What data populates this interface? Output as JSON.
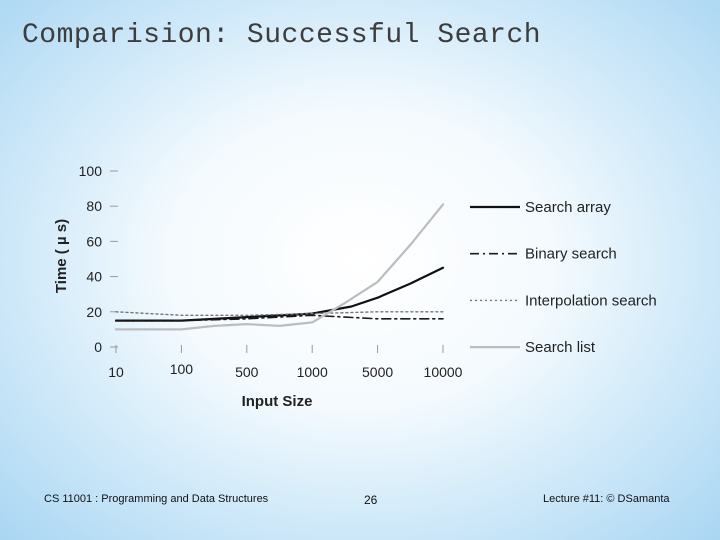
{
  "slide": {
    "title": "Comparision: Successful Search"
  },
  "footer": {
    "course": "CS 11001 : Programming and Data Structures",
    "page_number": "26",
    "lecture": "Lecture #11: © DSamanta"
  },
  "colors": {
    "search_array": "#111111",
    "binary_search": "#1a1a1a",
    "interpolation_search": "#777777",
    "search_list": "#bdbdbd",
    "axis": "#999999",
    "text": "#222222"
  },
  "chart_data": {
    "type": "line",
    "xlabel": "Input Size",
    "ylabel": "Time ( µ s)",
    "categories": [
      "10",
      "100",
      "500",
      "1000",
      "5000",
      "10000"
    ],
    "yticks": [
      "0",
      "20",
      "40",
      "60",
      "80",
      "100"
    ],
    "ylim": [
      0,
      100
    ],
    "grid": false,
    "legend_position": "right",
    "series": [
      {
        "name": "Search array",
        "style": "solid",
        "x": [
          0,
          1,
          2,
          3,
          3.6,
          4,
          4.5,
          5
        ],
        "y": [
          15,
          15,
          17,
          19,
          23,
          28,
          36,
          45
        ]
      },
      {
        "name": "Binary search",
        "style": "dash-dot",
        "x": [
          0,
          1,
          2,
          3,
          3.5,
          4,
          5
        ],
        "y": [
          15,
          15,
          16,
          18,
          17,
          16,
          16
        ]
      },
      {
        "name": "Interpolation search",
        "style": "dotted",
        "x": [
          0,
          1,
          2,
          3,
          4,
          5
        ],
        "y": [
          20,
          18,
          18,
          19,
          20,
          20
        ]
      },
      {
        "name": "Search list",
        "style": "solid-light",
        "x": [
          0,
          1,
          1.5,
          2,
          2.5,
          3,
          3.5,
          4,
          4.5,
          5
        ],
        "y": [
          10,
          10,
          12,
          13,
          12,
          14,
          25,
          37,
          58,
          81
        ]
      }
    ]
  }
}
